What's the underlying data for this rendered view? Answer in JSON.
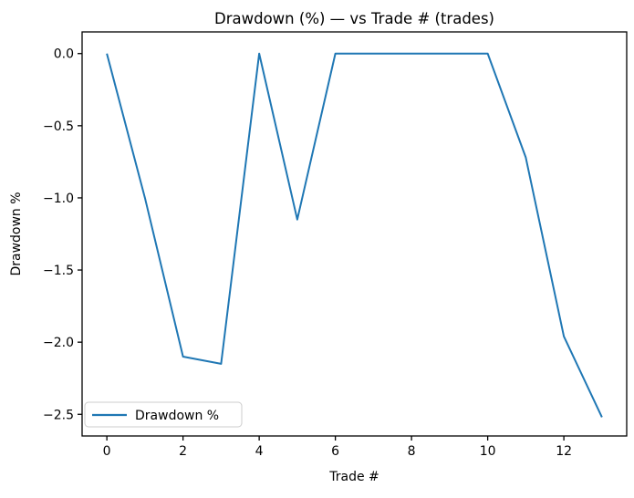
{
  "chart_data": {
    "type": "line",
    "title": "Drawdown (%) — vs Trade # (trades)",
    "xlabel": "Trade #",
    "ylabel": "Drawdown %",
    "legend": [
      "Drawdown %"
    ],
    "legend_position": "lower left",
    "grid": false,
    "line_color": "#1f77b4",
    "spine_color": "#000000",
    "legend_edge_color": "#cccccc",
    "legend_face_color": "#ffffff",
    "background_color": "#ffffff",
    "x": [
      0,
      1,
      2,
      3,
      4,
      5,
      6,
      7,
      8,
      9,
      10,
      11,
      12,
      13
    ],
    "y": [
      0.0,
      -1.0,
      -2.1,
      -2.15,
      0.0,
      -1.15,
      0.0,
      0.0,
      0.0,
      0.0,
      0.0,
      -0.72,
      -1.96,
      -2.52
    ],
    "series": [
      {
        "name": "Drawdown %",
        "values": [
          0.0,
          -1.0,
          -2.1,
          -2.15,
          0.0,
          -1.15,
          0.0,
          0.0,
          0.0,
          0.0,
          0.0,
          -0.72,
          -1.96,
          -2.52
        ]
      }
    ],
    "xticks": [
      0,
      2,
      4,
      6,
      8,
      10,
      12
    ],
    "xtick_labels": [
      "0",
      "2",
      "4",
      "6",
      "8",
      "10",
      "12"
    ],
    "yticks": [
      0.0,
      -0.5,
      -1.0,
      -1.5,
      -2.0,
      -2.5
    ],
    "ytick_labels": [
      "0.0",
      "−0.5",
      "−1.0",
      "−1.5",
      "−2.0",
      "−2.5"
    ],
    "xlim": [
      -0.65,
      13.65
    ],
    "ylim": [
      -2.65,
      0.15
    ]
  }
}
